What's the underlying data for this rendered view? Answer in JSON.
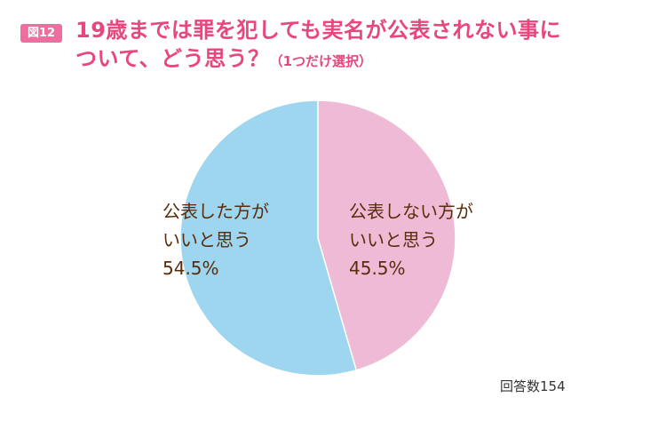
{
  "figure": {
    "badge": "図12",
    "title_line1": "19歳までは罪を犯しても実名が公表されない事に",
    "title_line2": "ついて、どう思う？",
    "title_note": "（1つだけ選択）",
    "respondents": "回答数154"
  },
  "colors": {
    "title": "#e8467e",
    "badge": "#ee6f9f",
    "slice_yes": "#9dd6ee",
    "slice_no": "#efbad6",
    "label": "#5a2c0c"
  },
  "chart_data": {
    "type": "pie",
    "start": "12 o'clock",
    "direction": "clockwise",
    "slices": [
      {
        "label_line1": "公表しない方が",
        "label_line2": "いいと思う",
        "value": 45.5,
        "value_text": "45.5%",
        "color": "#efbad6"
      },
      {
        "label_line1": "公表した方が",
        "label_line2": "いいと思う",
        "value": 54.5,
        "value_text": "54.5%",
        "color": "#9dd6ee"
      }
    ]
  }
}
